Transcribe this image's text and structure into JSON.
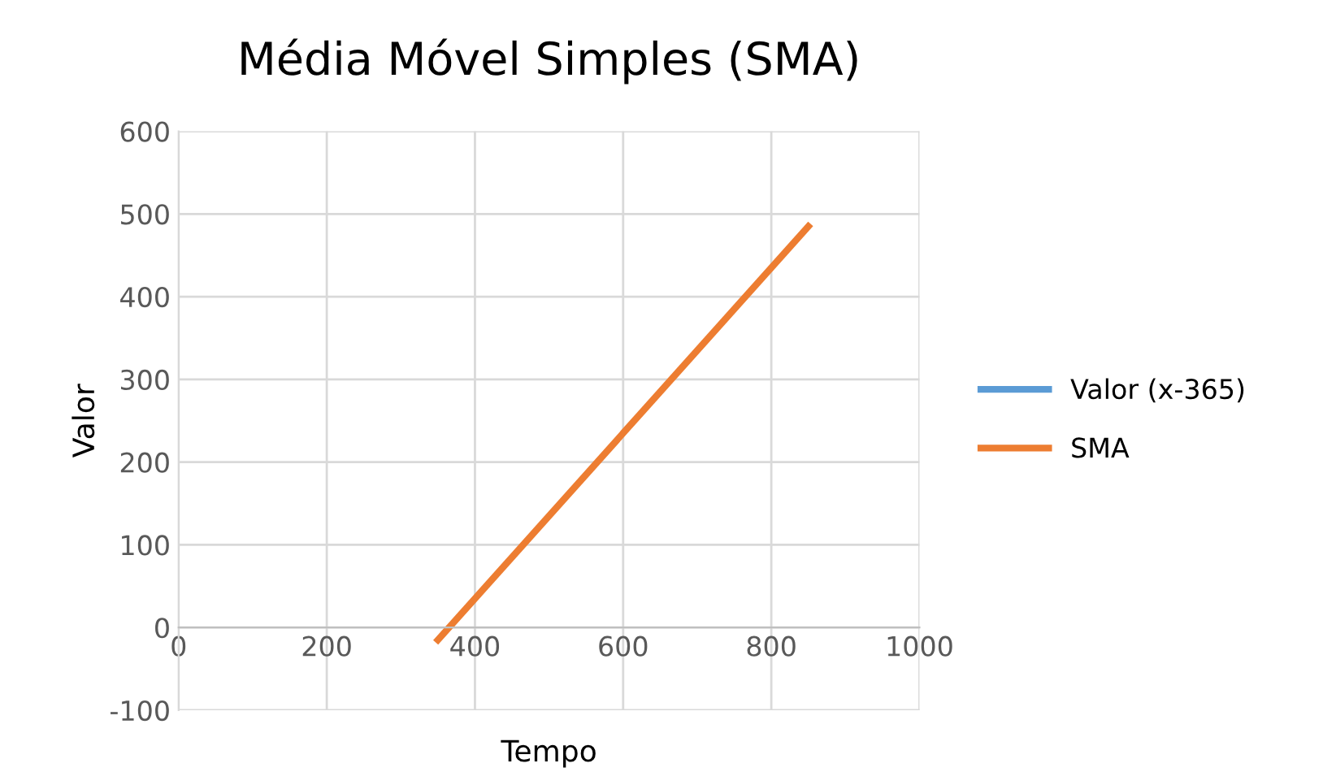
{
  "chart_data": {
    "type": "line",
    "title": "Média Móvel Simples (SMA)",
    "xlabel": "Tempo",
    "ylabel": "Valor",
    "xlim": [
      0,
      1000
    ],
    "xticks": [
      0,
      200,
      400,
      600,
      800,
      1000
    ],
    "ylim": [
      -100,
      600
    ],
    "yticks": [
      -100,
      0,
      100,
      200,
      300,
      400,
      500,
      600
    ],
    "x": [
      350,
      850
    ],
    "grid": true,
    "legend": "right",
    "line_style": "solid",
    "marker": "none",
    "series": [
      {
        "name": "Valor (x-365)",
        "color": "#5b9bd5",
        "values": [
          null,
          null
        ]
      },
      {
        "name": "SMA",
        "color": "#ed7d31",
        "values": [
          -15,
          485
        ]
      }
    ]
  }
}
